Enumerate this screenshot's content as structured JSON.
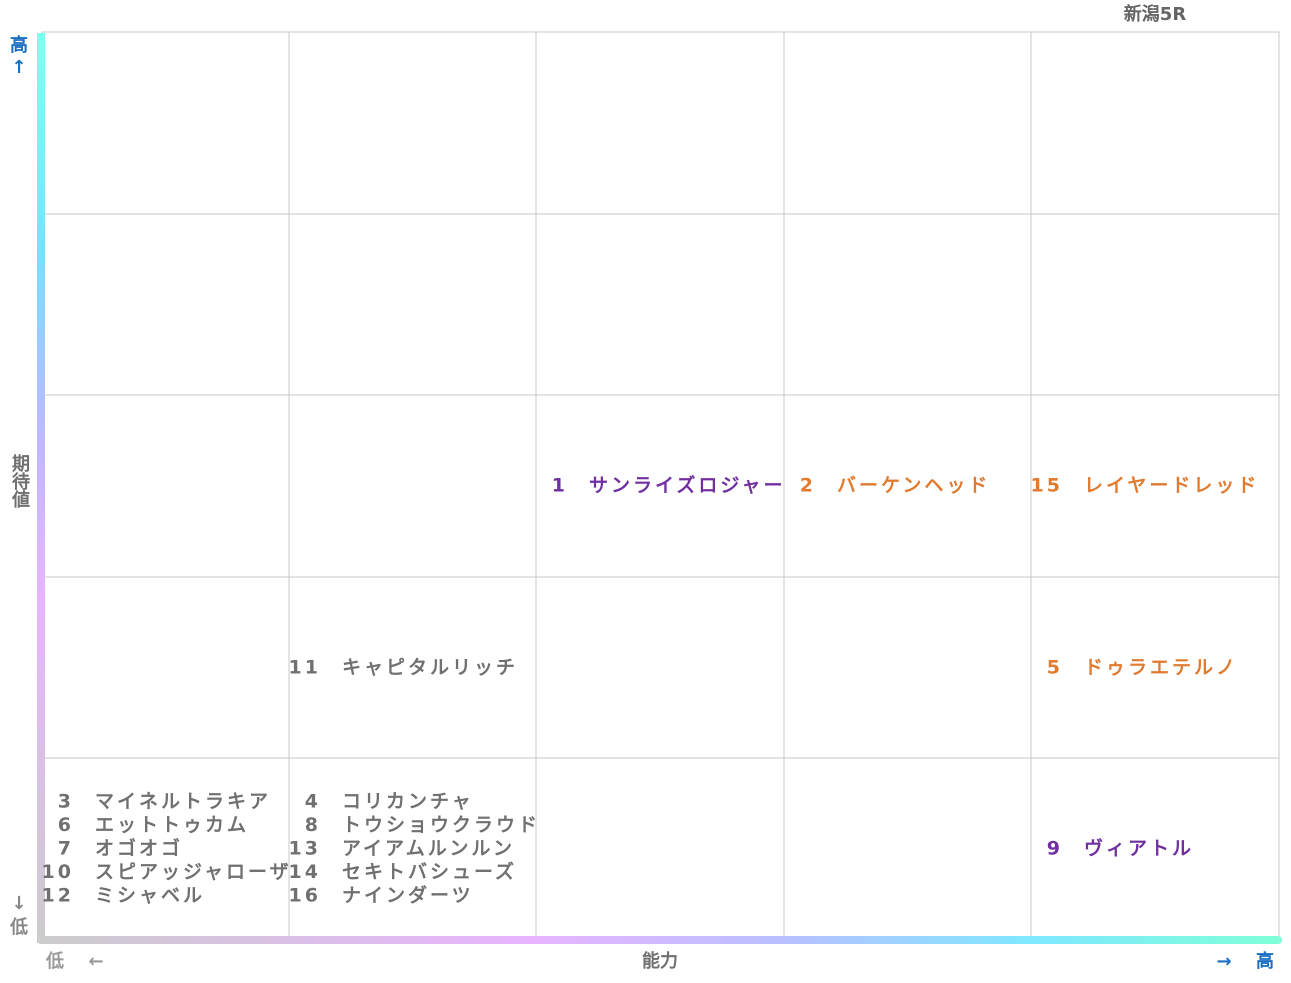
{
  "title": "新潟5R",
  "y_axis": {
    "label": "期待値",
    "high": "高",
    "high_arrow": "↑",
    "low_arrow": "↓",
    "low": "低"
  },
  "x_axis": {
    "label": "能力",
    "low": "低",
    "low_arrow": "←",
    "high_arrow": "→",
    "high": "高"
  },
  "colors": {
    "purple": "#7030a0",
    "orange": "#e07b30",
    "gray": "#707070"
  },
  "grid": {
    "rows": [
      [
        [],
        [],
        [],
        [],
        []
      ],
      [
        [],
        [],
        [],
        [],
        []
      ],
      [
        [],
        [],
        [
          {
            "number": "1",
            "name": "サンライズロジャー",
            "color": "purple"
          }
        ],
        [
          {
            "number": "2",
            "name": "バーケンヘッド",
            "color": "orange"
          }
        ],
        [
          {
            "number": "15",
            "name": "レイヤードレッド",
            "color": "orange"
          }
        ]
      ],
      [
        [],
        [
          {
            "number": "11",
            "name": "キャピタルリッチ",
            "color": "gray"
          }
        ],
        [],
        [],
        [
          {
            "number": "5",
            "name": "ドゥラエテルノ",
            "color": "orange"
          }
        ]
      ],
      [
        [
          {
            "number": "3",
            "name": "マイネルトラキア",
            "color": "gray"
          },
          {
            "number": "6",
            "name": "エットトゥカム",
            "color": "gray"
          },
          {
            "number": "7",
            "name": "オゴオゴ",
            "color": "gray"
          },
          {
            "number": "10",
            "name": "スピアッジャローザ",
            "color": "gray"
          },
          {
            "number": "12",
            "name": "ミシャベル",
            "color": "gray"
          }
        ],
        [
          {
            "number": "4",
            "name": "コリカンチャ",
            "color": "gray"
          },
          {
            "number": "8",
            "name": "トウショウクラウド",
            "color": "gray"
          },
          {
            "number": "13",
            "name": "アイアムルンルン",
            "color": "gray"
          },
          {
            "number": "14",
            "name": "セキトバシューズ",
            "color": "gray"
          },
          {
            "number": "16",
            "name": "ナインダーツ",
            "color": "gray"
          }
        ],
        [],
        [],
        [
          {
            "number": "9",
            "name": "ヴィアトル",
            "color": "purple"
          }
        ]
      ]
    ]
  }
}
